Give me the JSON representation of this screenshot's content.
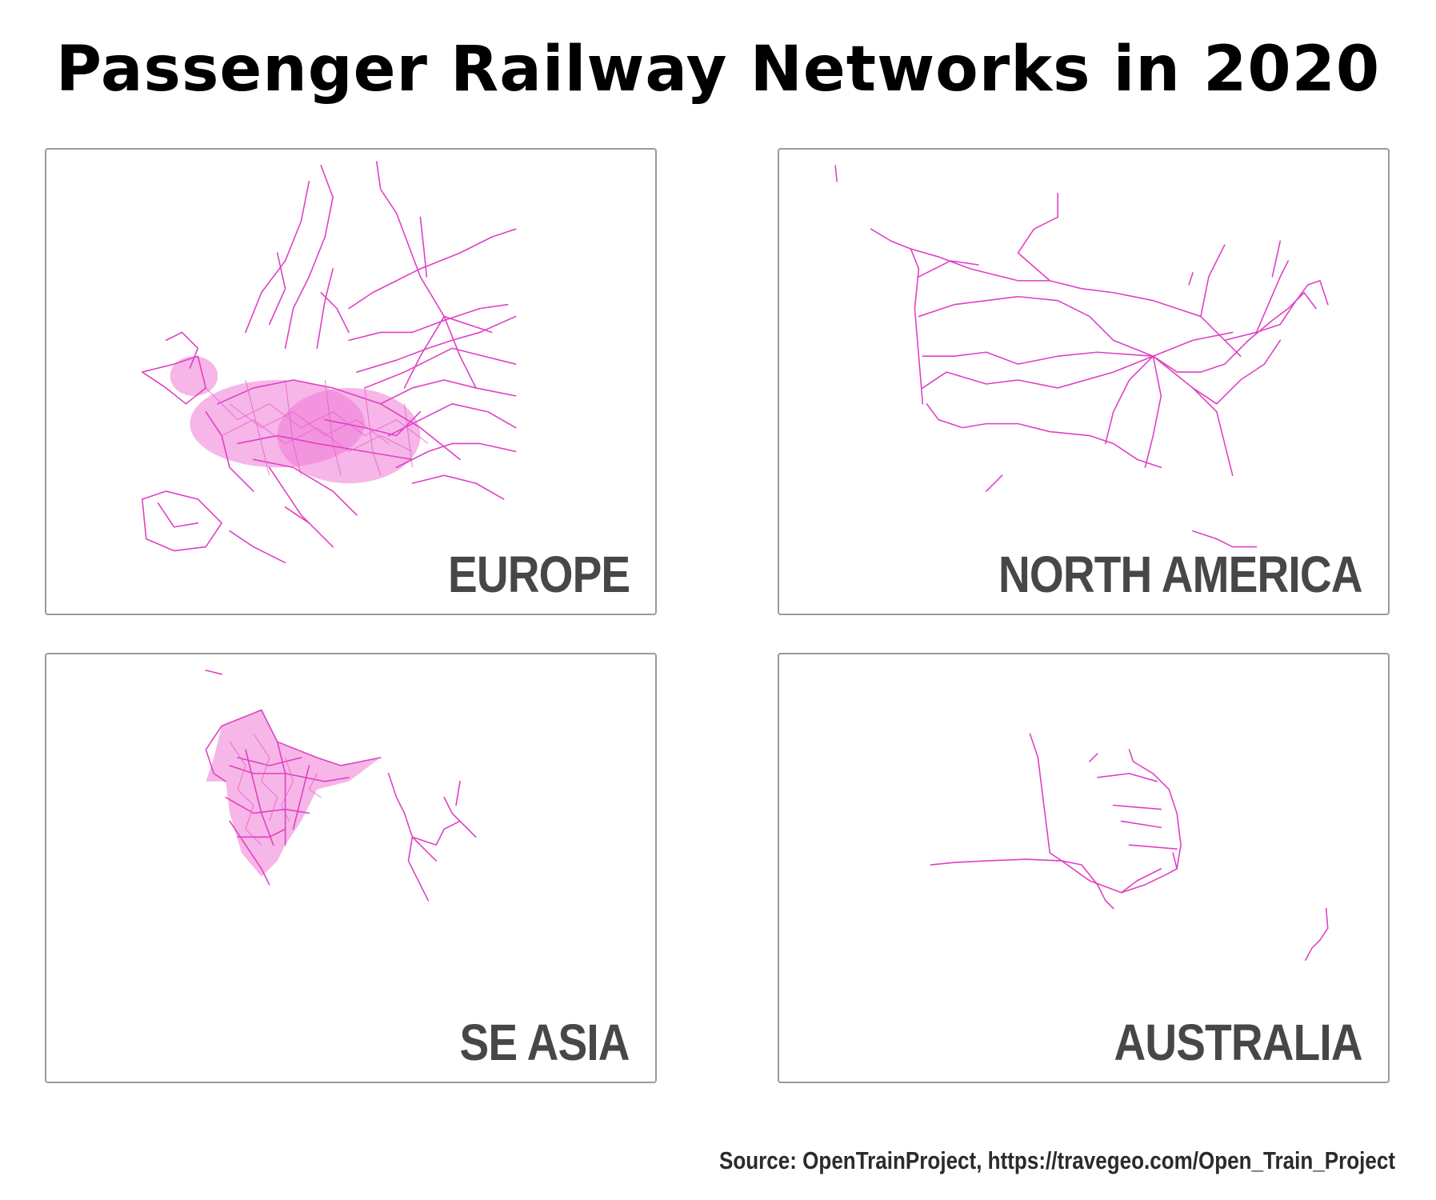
{
  "title": "Passenger Railway Networks in 2020",
  "panels": [
    {
      "label": "EUROPE"
    },
    {
      "label": "NORTH AMERICA"
    },
    {
      "label": "SE ASIA"
    },
    {
      "label": "AUSTRALIA"
    }
  ],
  "source": "Source: OpenTrainProject, https://travegeo.com/Open_Train_Project",
  "colors": {
    "rail": "#e040c4",
    "label": "#474747",
    "border": "#9a9a9a"
  }
}
